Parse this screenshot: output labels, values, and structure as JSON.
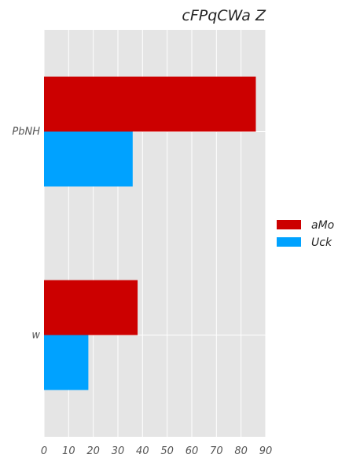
{
  "chart_data": {
    "type": "bar",
    "orientation": "horizontal",
    "title": "cFPqCWa  Z",
    "xlabel": "",
    "ylabel": "",
    "categories": [
      "w",
      "PbNH"
    ],
    "series": [
      {
        "name": "aMo",
        "values": [
          38,
          86
        ],
        "color": "#cc0000"
      },
      {
        "name": "Uck",
        "values": [
          18,
          36
        ],
        "color": "#00a2ff"
      }
    ],
    "xlim": [
      0,
      90
    ],
    "xticks": [
      0,
      10,
      20,
      30,
      40,
      50,
      60,
      70,
      80,
      90
    ],
    "grid": true,
    "legend_position": "right",
    "background_color": "#e5e5e5",
    "grid_color": "#ffffff"
  }
}
